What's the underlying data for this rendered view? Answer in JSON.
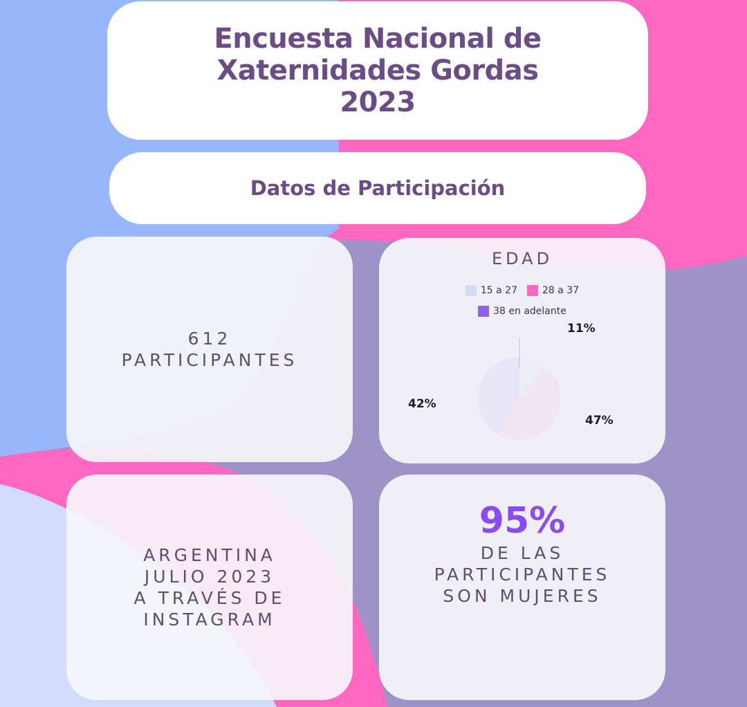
{
  "header": {
    "title_lines": [
      "Encuesta Nacional de",
      "Xaternidades Gordas",
      "2023"
    ],
    "subtitle": "Datos de Participación"
  },
  "participants": {
    "number": "612",
    "label": "PARTICIPANTES"
  },
  "location": {
    "lines": [
      "ARGENTINA",
      "JULIO 2023",
      "A TRAVÉS DE",
      "INSTAGRAM"
    ]
  },
  "women": {
    "percent": "95%",
    "lines": [
      "DE LAS",
      "PARTICIPANTES",
      "SON MUJERES"
    ]
  },
  "colors": {
    "bg_blue": "#97b6fb",
    "bg_pink": "#ff67c1",
    "bg_purple": "#9d93c8",
    "bg_light_blue": "#d1dcfd",
    "title_text": "#6b4c84",
    "accent_purple": "#8a4cf0"
  },
  "chart_data": {
    "type": "pie",
    "title": "EDAD",
    "categories": [
      "15 a 27",
      "28 a 37",
      "38 en adelante"
    ],
    "values": [
      11,
      47,
      42
    ],
    "labels": [
      "11%",
      "47%",
      "42%"
    ],
    "colors": [
      "#d0ddf8",
      "#ff67c1",
      "#8f63e6"
    ],
    "legend_position": "top"
  }
}
